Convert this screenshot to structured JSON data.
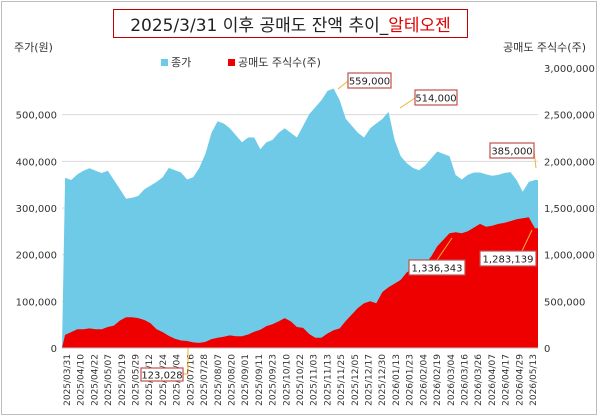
{
  "title": {
    "main": "2025/3/31 이후 공매도 잔액 추이_",
    "accent": "알테오젠"
  },
  "colors": {
    "price": "#6ecae6",
    "short": "#ee0000",
    "callout_border": "#c0504d"
  },
  "chart_data": {
    "type": "area",
    "title": "2025/3/31 이후 공매도 잔액 추이_알테오젠",
    "left_axis_label": "주가(원)",
    "right_axis_label": "공매도 주식수(주)",
    "left_ylim": [
      0,
      600000
    ],
    "right_ylim": [
      0,
      3000000
    ],
    "left_ticks": [
      "0",
      "100,000",
      "200,000",
      "300,000",
      "400,000",
      "500,000"
    ],
    "right_ticks": [
      "0",
      "500,000",
      "1,000,000",
      "1,500,000",
      "2,000,000",
      "2,500,000",
      "3,000,000"
    ],
    "x_ticks": [
      "2025/03/31",
      "2025/04/10",
      "2025/04/22",
      "2025/05/07",
      "2025/05/19",
      "2025/05/29",
      "2025/06/12",
      "2025/06/24",
      "2025/07/04",
      "2025/07/16",
      "2025/07/28",
      "2025/08/07",
      "2025/08/20",
      "2025/09/01",
      "2025/09/11",
      "2025/09/23",
      "2025/10/10",
      "2025/10/22",
      "2025/11/03",
      "2025/11/13",
      "2025/11/25",
      "2025/12/05",
      "2025/12/17",
      "2025/12/30",
      "2026/01/13",
      "2026/01/23",
      "2026/02/04",
      "2026/02/19",
      "2026/03/04",
      "2026/03/16",
      "2026/03/26",
      "2026/04/07",
      "2026/04/17",
      "2026/04/29",
      "2026/05/13"
    ],
    "legend": [
      "종가",
      "공매도 주식수(주)"
    ],
    "legend_position": "top-left",
    "grid": true,
    "series": [
      {
        "name": "종가",
        "axis": "left",
        "type": "area",
        "values": [
          365000,
          360000,
          372000,
          380000,
          385000,
          380000,
          375000,
          380000,
          360000,
          340000,
          320000,
          322000,
          326000,
          340000,
          348000,
          356000,
          366000,
          386000,
          381000,
          376000,
          361000,
          366000,
          386000,
          416000,
          461000,
          486000,
          481000,
          471000,
          456000,
          441000,
          451000,
          451000,
          426000,
          441000,
          446000,
          461000,
          471000,
          461000,
          451000,
          476000,
          501000,
          516000,
          531000,
          551000,
          556000,
          531000,
          491000,
          476000,
          461000,
          451000,
          471000,
          481000,
          491000,
          506000,
          446000,
          411000,
          396000,
          386000,
          381000,
          391000,
          406000,
          421000,
          416000,
          411000,
          371000,
          361000,
          371000,
          376000,
          376000,
          372000,
          369000,
          371000,
          375000,
          377000,
          360000,
          335000,
          356000,
          360000
        ]
      },
      {
        "name": "공매도 주식수(주)",
        "axis": "right",
        "type": "area",
        "values": [
          140000,
          170000,
          200000,
          200000,
          210000,
          200000,
          200000,
          225000,
          240000,
          295000,
          330000,
          330000,
          320000,
          300000,
          265000,
          200000,
          170000,
          130000,
          100000,
          80000,
          75000,
          60000,
          55000,
          65000,
          95000,
          110000,
          120000,
          135000,
          125000,
          125000,
          145000,
          175000,
          195000,
          235000,
          255000,
          285000,
          320000,
          285000,
          225000,
          215000,
          150000,
          110000,
          110000,
          155000,
          190000,
          210000,
          290000,
          360000,
          430000,
          480000,
          500000,
          480000,
          600000,
          650000,
          690000,
          730000,
          810000,
          850000,
          870000,
          900000,
          980000,
          1090000,
          1160000,
          1230000,
          1240000,
          1230000,
          1250000,
          1290000,
          1330000,
          1300000,
          1310000,
          1330000,
          1340000,
          1360000,
          1380000,
          1390000,
          1400000,
          1283139
        ]
      }
    ],
    "annotations": [
      {
        "label": "123,028"
      },
      {
        "label": "559,000"
      },
      {
        "label": "514,000"
      },
      {
        "label": "385,000"
      },
      {
        "label": "1,336,343"
      },
      {
        "label": "1,283,139"
      }
    ]
  }
}
